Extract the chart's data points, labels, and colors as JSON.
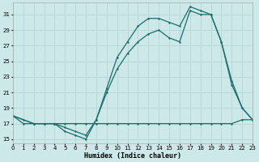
{
  "xlabel": "Humidex (Indice chaleur)",
  "bg_color": "#cce8e8",
  "line_color": "#1a6e6a",
  "grid_color": "#b8d8d8",
  "xlim": [
    0,
    23
  ],
  "ylim": [
    14.5,
    32.5
  ],
  "yticks": [
    15,
    17,
    19,
    21,
    23,
    25,
    27,
    29,
    31
  ],
  "xticks": [
    0,
    1,
    2,
    3,
    4,
    5,
    6,
    7,
    8,
    9,
    10,
    11,
    12,
    13,
    14,
    15,
    16,
    17,
    18,
    19,
    20,
    21,
    22,
    23
  ],
  "line1_x": [
    0,
    1,
    2,
    3,
    4,
    5,
    6,
    7,
    8,
    9,
    10,
    11,
    12,
    13,
    14,
    15,
    16,
    17,
    18,
    19,
    20,
    21,
    22,
    23
  ],
  "line1_y": [
    18,
    17,
    17,
    17,
    17,
    17,
    17,
    17,
    17,
    17,
    17,
    17,
    17,
    17,
    17,
    17,
    17,
    17,
    17,
    17,
    17,
    17,
    17.5,
    17.5
  ],
  "line2_x": [
    0,
    1,
    2,
    3,
    4,
    5,
    6,
    7,
    8,
    9,
    10,
    11,
    12,
    13,
    14,
    15,
    16,
    17,
    18,
    19,
    20,
    21,
    22,
    23
  ],
  "line2_y": [
    18,
    17.5,
    17,
    17,
    17,
    16,
    15.5,
    15,
    17.5,
    21.5,
    25.5,
    27.5,
    29.5,
    30.5,
    30.5,
    30,
    29.5,
    32,
    31.5,
    31,
    27.5,
    22,
    19,
    17.5
  ],
  "line3_x": [
    0,
    2,
    3,
    4,
    5,
    6,
    7,
    8,
    9,
    10,
    11,
    12,
    13,
    14,
    15,
    16,
    17,
    18,
    19,
    20,
    21,
    22,
    23
  ],
  "line3_y": [
    18,
    17,
    17,
    17,
    16.5,
    16,
    15.5,
    17.5,
    21,
    24,
    26,
    27.5,
    28.5,
    29,
    28,
    27.5,
    31.5,
    31,
    31,
    27.5,
    22.5,
    19,
    17.5
  ]
}
